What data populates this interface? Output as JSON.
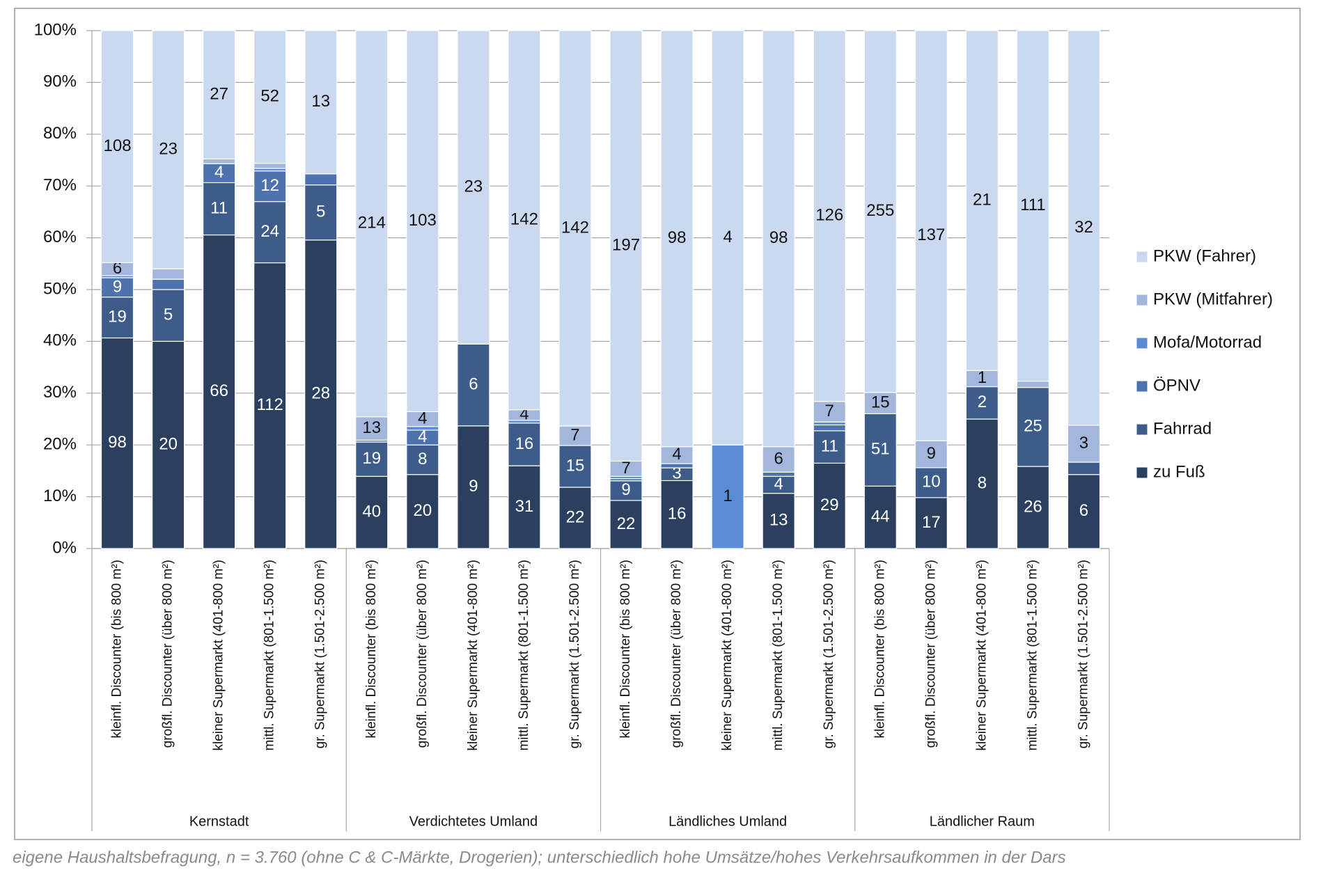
{
  "chart_data": {
    "type": "stacked_bar_100",
    "groups": [
      "Kernstadt",
      "Verdichtetes Umland",
      "Ländliches Umland",
      "Ländlicher Raum"
    ],
    "categories": [
      "kleinfl. Discounter (bis 800 m²)",
      "großfl. Discounter (über 800 m²)",
      "kleiner Supermarkt (401-800 m²)",
      "mittl. Supermarkt (801-1.500 m²)",
      "gr. Supermarkt (1.501-2.500 m²)",
      "kleinfl. Discounter (bis 800 m²)",
      "großfl. Discounter (über 800 m²)",
      "kleiner Supermarkt (401-800 m²)",
      "mittl. Supermarkt (801-1.500 m²)",
      "gr. Supermarkt (1.501-2.500 m²)",
      "kleinfl. Discounter (bis 800 m²)",
      "großfl. Discounter (über 800 m²)",
      "kleiner Supermarkt (401-800 m²)",
      "mittl. Supermarkt (801-1.500 m²)",
      "gr. Supermarkt (1.501-2.500 m²)",
      "kleinfl. Discounter (bis 800 m²)",
      "großfl. Discounter (über 800 m²)",
      "kleiner Supermarkt (401-800 m²)",
      "mittl. Supermarkt (801-1.500 m²)",
      "gr. Supermarkt (1.501-2.500 m²)"
    ],
    "series": [
      {
        "name": "zu Fuß",
        "color": "#2b3f5e",
        "label_color": "#ffffff",
        "values": [
          98,
          20,
          66,
          112,
          28,
          40,
          20,
          9,
          31,
          22,
          22,
          16,
          0,
          13,
          29,
          44,
          17,
          8,
          26,
          6
        ],
        "value_labels": [
          "98",
          "20",
          "66",
          "112",
          "28",
          "40",
          "20",
          "9",
          "31",
          "22",
          "22",
          "16",
          null,
          "13",
          "29",
          "44",
          "17",
          "8",
          "26",
          "6"
        ]
      },
      {
        "name": "Fahrrad",
        "color": "#3e5c8a",
        "label_color": "#ffffff",
        "values": [
          19,
          5,
          11,
          24,
          5,
          19,
          8,
          6,
          16,
          15,
          9,
          3,
          0,
          4,
          11,
          51,
          10,
          2,
          25,
          1
        ],
        "value_labels": [
          "19",
          "5",
          "11",
          "24",
          "5",
          "19",
          "8",
          "6",
          "16",
          "15",
          "9",
          "3",
          null,
          "4",
          "11",
          "51",
          "10",
          "2",
          "25",
          null
        ]
      },
      {
        "name": "ÖPNV",
        "color": "#4d72ae",
        "label_color": "#ffffff",
        "values": [
          9,
          1,
          4,
          12,
          1,
          1,
          4,
          0,
          0,
          0,
          1,
          1,
          0,
          1,
          2,
          0,
          0,
          0,
          0,
          0
        ],
        "value_labels": [
          "9",
          null,
          "4",
          "12",
          null,
          null,
          "4",
          null,
          null,
          null,
          null,
          null,
          null,
          null,
          null,
          null,
          null,
          null,
          null,
          null
        ]
      },
      {
        "name": "Mofa/Motorrad",
        "color": "#5b8bd4",
        "label_color": "#111111",
        "values": [
          1,
          0,
          0,
          1,
          0,
          0,
          1,
          0,
          1,
          0,
          1,
          0,
          1,
          0,
          1,
          0,
          0,
          0,
          0,
          0
        ],
        "value_labels": [
          null,
          null,
          null,
          null,
          null,
          null,
          null,
          null,
          null,
          null,
          null,
          null,
          "1",
          null,
          null,
          null,
          null,
          null,
          null,
          null
        ]
      },
      {
        "name": "PKW (Mitfahrer)",
        "color": "#a3b7dc",
        "label_color": "#111111",
        "values": [
          6,
          1,
          1,
          2,
          0,
          13,
          4,
          0,
          4,
          7,
          7,
          4,
          0,
          6,
          7,
          15,
          9,
          1,
          2,
          3
        ],
        "value_labels": [
          "6",
          null,
          null,
          null,
          null,
          "13",
          "4",
          null,
          "4",
          "7",
          "7",
          "4",
          null,
          "6",
          "7",
          "15",
          "9",
          "1",
          null,
          "3"
        ]
      },
      {
        "name": "PKW (Fahrer)",
        "color": "#cad9f0",
        "label_color": "#111111",
        "values": [
          108,
          23,
          27,
          52,
          13,
          214,
          103,
          23,
          142,
          142,
          197,
          98,
          4,
          98,
          126,
          255,
          137,
          21,
          111,
          32
        ],
        "value_labels": [
          "108",
          "23",
          "27",
          "52",
          "13",
          "214",
          "103",
          "23",
          "142",
          "142",
          "197",
          "98",
          "4",
          "98",
          "126",
          "255",
          "137",
          "21",
          "111",
          "32"
        ]
      }
    ],
    "ylim": [
      0,
      100
    ],
    "yticks": [
      {
        "value": 0,
        "label": "0%"
      },
      {
        "value": 10,
        "label": "10%"
      },
      {
        "value": 20,
        "label": "20%"
      },
      {
        "value": 30,
        "label": "30%"
      },
      {
        "value": 40,
        "label": "40%"
      },
      {
        "value": 50,
        "label": "50%"
      },
      {
        "value": 60,
        "label": "60%"
      },
      {
        "value": 70,
        "label": "70%"
      },
      {
        "value": 80,
        "label": "80%"
      },
      {
        "value": 90,
        "label": "90%"
      },
      {
        "value": 100,
        "label": "100%"
      }
    ],
    "grid": true,
    "legend": "right",
    "footnote": "eigene Haushaltsbefragung, n = 3.760  (ohne C & C-Märkte, Drogerien); unterschiedlich hohe Umsätze/hohes Verkehrsaufkommen in der Dars"
  }
}
